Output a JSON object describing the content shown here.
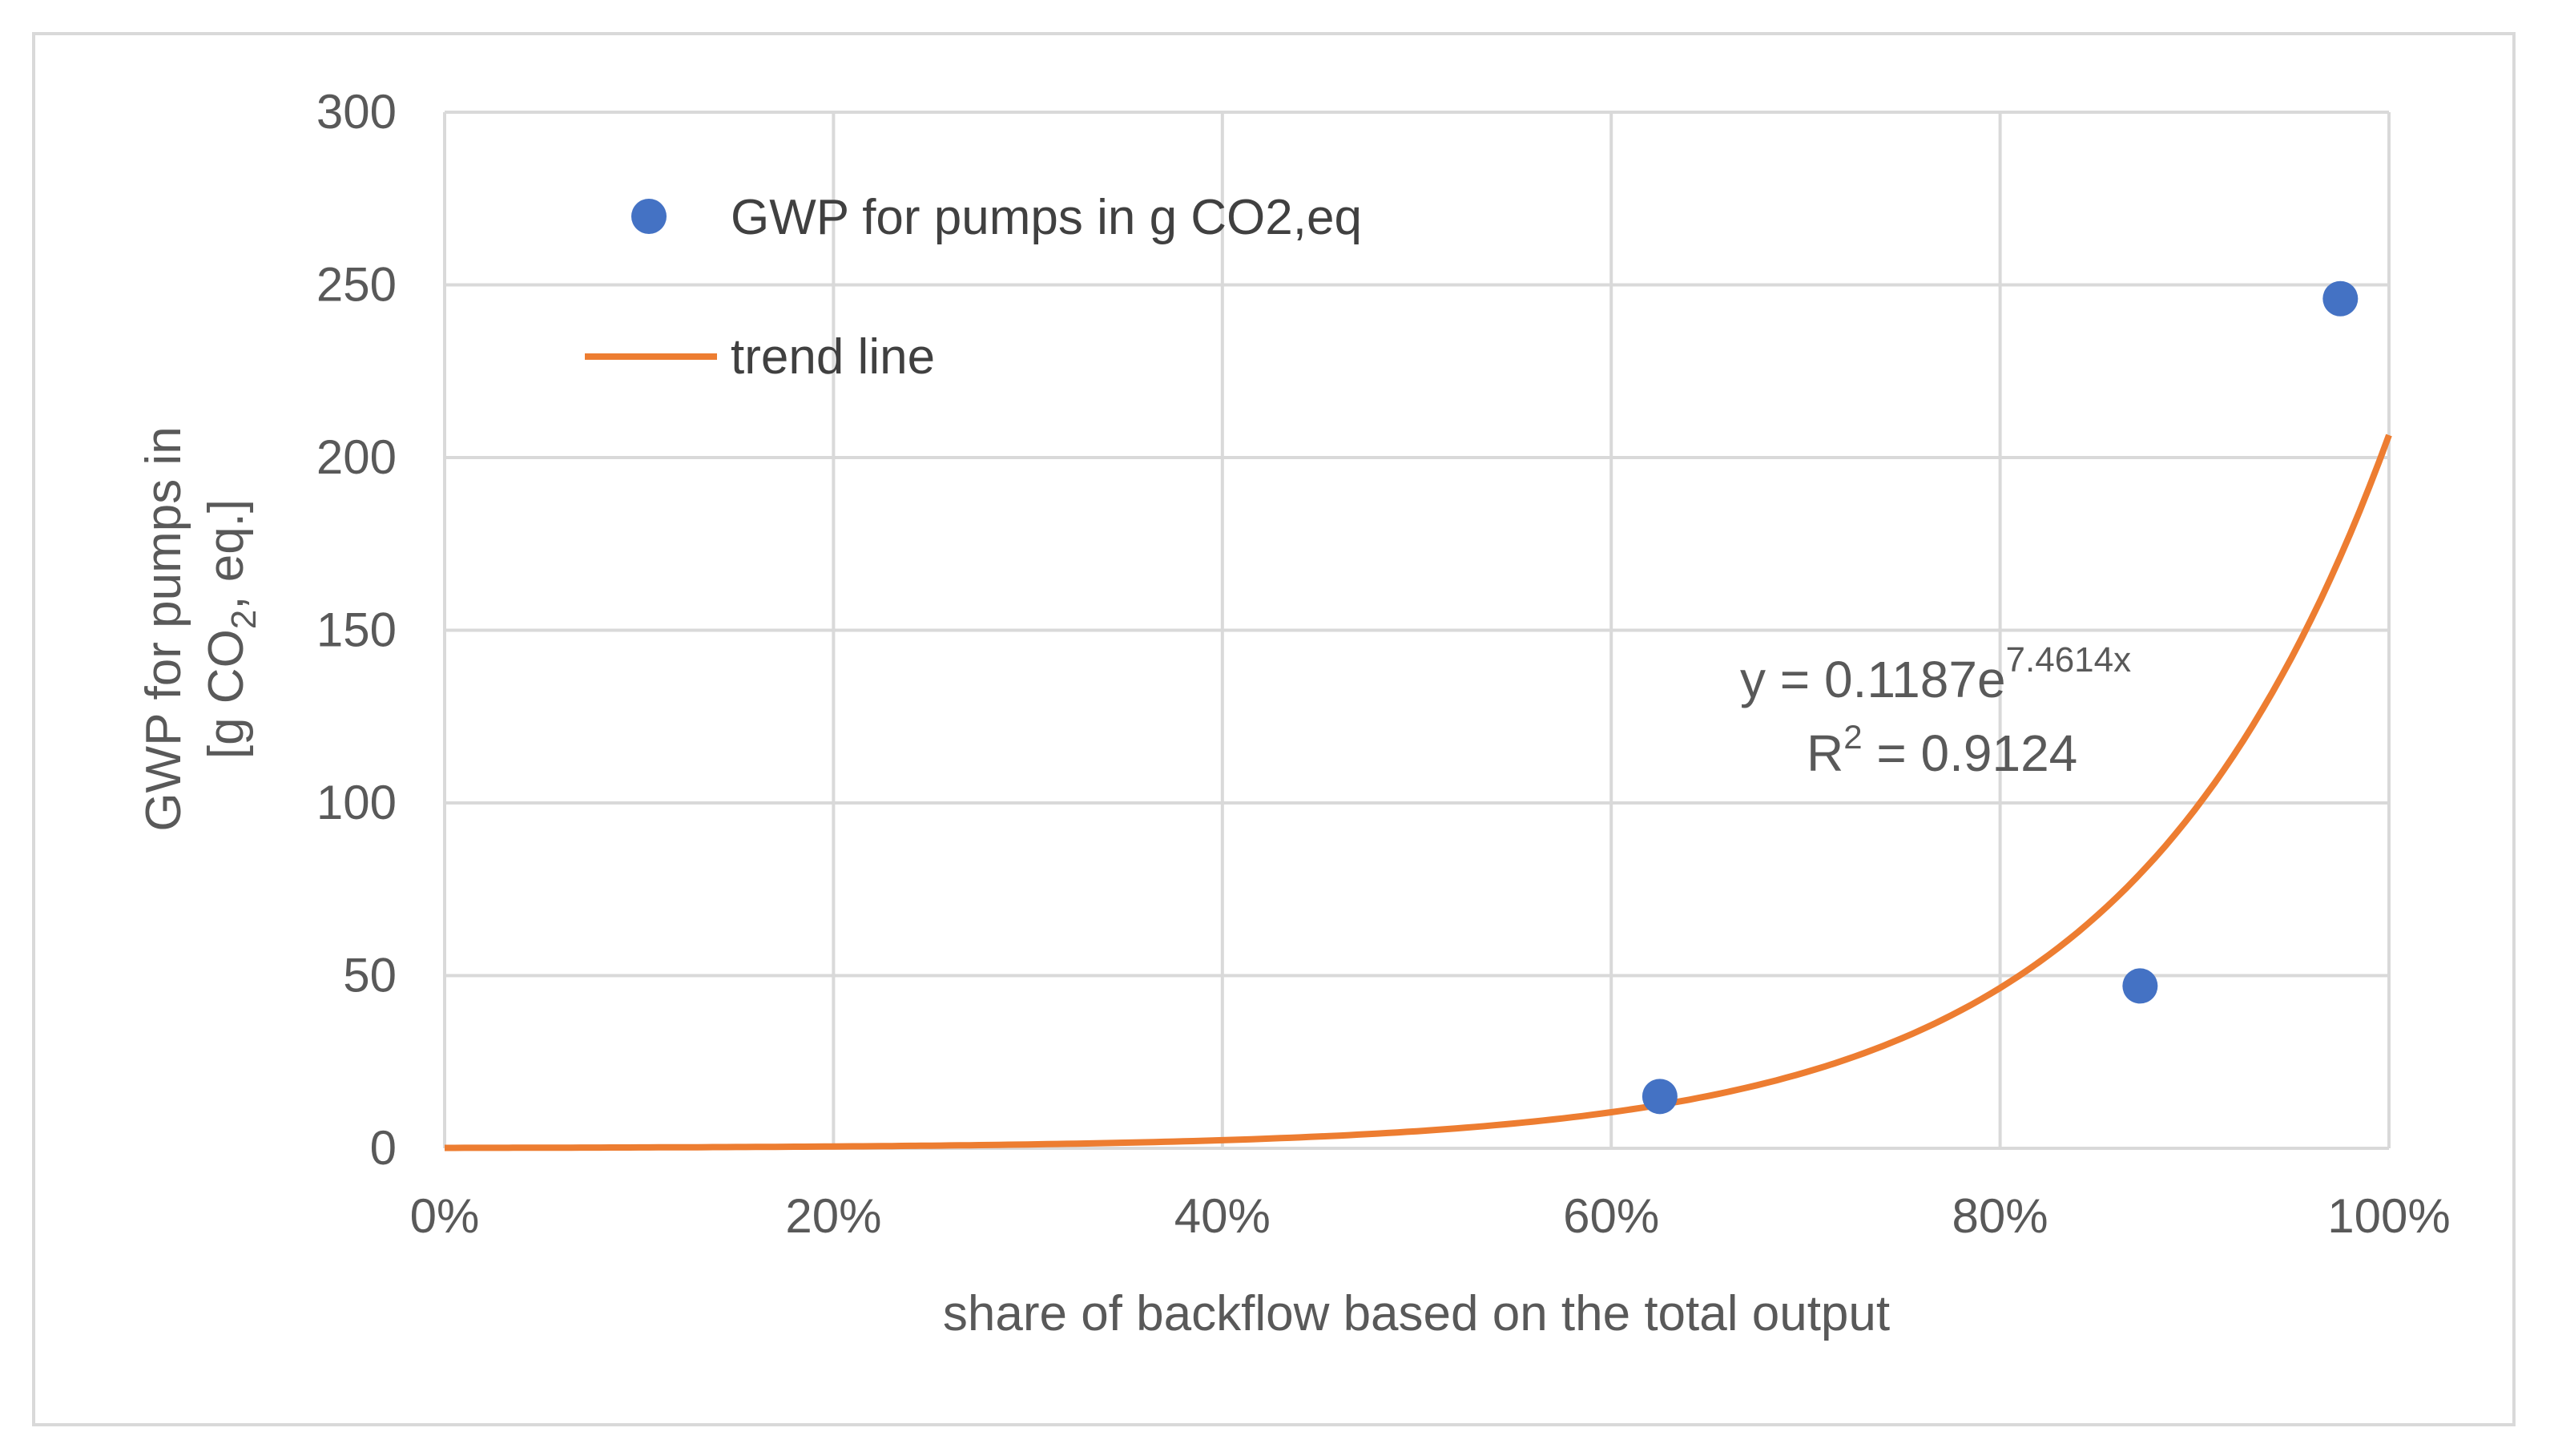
{
  "chart_data": {
    "type": "scatter",
    "xlabel": "share of backflow based on the total output",
    "ylabel": {
      "line1": "GWP for pumps in",
      "line2_prefix": "[g CO",
      "line2_sub": "2",
      "line2_suffix": ", eq.]"
    },
    "xlim": [
      0,
      1
    ],
    "ylim": [
      0,
      300
    ],
    "x_ticks": [
      0,
      0.2,
      0.4,
      0.6,
      0.8,
      1.0
    ],
    "x_tick_labels": [
      "0%",
      "20%",
      "40%",
      "60%",
      "80%",
      "100%"
    ],
    "y_ticks": [
      0,
      50,
      100,
      150,
      200,
      250,
      300
    ],
    "y_tick_labels": [
      "0",
      "50",
      "100",
      "150",
      "200",
      "250",
      "300"
    ],
    "grid": true,
    "legend_position": "top-left",
    "series": [
      {
        "name": "GWP for pumps in g CO2,eq",
        "kind": "points",
        "color": "#4472c4",
        "x": [
          0.625,
          0.872,
          0.975
        ],
        "y": [
          15,
          47,
          246
        ]
      },
      {
        "name": "trend line",
        "kind": "trendline",
        "color": "#ed7d31",
        "model": "exponential",
        "coefficient": 0.1187,
        "exponent": 7.4614,
        "domain": [
          0,
          1
        ]
      }
    ],
    "annotation": {
      "eq_prefix": "y = 0.1187e",
      "eq_exponent": "7.4614x",
      "r2_prefix": "R",
      "r2_sup": "2",
      "r2_suffix": " = 0.9124"
    }
  }
}
